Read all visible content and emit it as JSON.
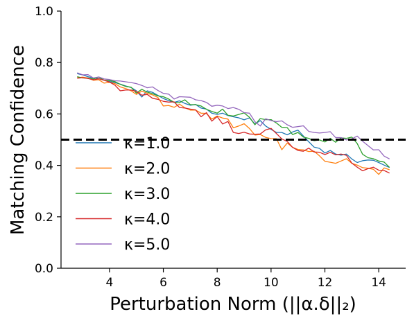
{
  "chart_data": {
    "type": "line",
    "xlabel": "Perturbation Norm (||α.δ||₂)",
    "ylabel": "Matching Confidence",
    "xlim": [
      2.2,
      15.0
    ],
    "ylim": [
      0.0,
      1.0
    ],
    "x_ticks": [
      "4",
      "6",
      "8",
      "10",
      "12",
      "14"
    ],
    "x_tick_values": [
      4,
      6,
      8,
      10,
      12,
      14
    ],
    "y_ticks": [
      "0.0",
      "0.2",
      "0.4",
      "0.6",
      "0.8",
      "1.0"
    ],
    "y_tick_values": [
      0.0,
      0.2,
      0.4,
      0.6,
      0.8,
      1.0
    ],
    "grid": false,
    "legend_position": "center-left",
    "reference_line": {
      "y": 0.5,
      "style": "dashed",
      "color": "#000000"
    },
    "x": [
      2.8,
      3.0,
      3.2,
      3.4,
      3.6,
      3.8,
      4.0,
      4.2,
      4.4,
      4.6,
      4.8,
      5.0,
      5.2,
      5.4,
      5.6,
      5.8,
      6.0,
      6.2,
      6.4,
      6.6,
      6.8,
      7.0,
      7.2,
      7.4,
      7.6,
      7.8,
      8.0,
      8.2,
      8.4,
      8.6,
      8.8,
      9.0,
      9.2,
      9.4,
      9.6,
      9.8,
      10.0,
      10.2,
      10.4,
      10.6,
      10.8,
      11.0,
      11.2,
      11.4,
      11.6,
      11.8,
      12.0,
      12.2,
      12.4,
      12.6,
      12.8,
      13.0,
      13.2,
      13.4,
      13.6,
      13.8,
      14.0,
      14.2,
      14.4
    ],
    "series": [
      {
        "name": "κ=1.0",
        "legend_label": "κ=1.0",
        "color": "#1f77b4",
        "values": [
          0.757,
          0.752,
          0.745,
          0.74,
          0.737,
          0.731,
          0.726,
          0.722,
          0.716,
          0.709,
          0.703,
          0.69,
          0.666,
          0.69,
          0.684,
          0.672,
          0.66,
          0.652,
          0.645,
          0.651,
          0.641,
          0.634,
          0.637,
          0.623,
          0.619,
          0.603,
          0.598,
          0.603,
          0.594,
          0.589,
          0.585,
          0.577,
          0.585,
          0.561,
          0.574,
          0.553,
          0.54,
          0.528,
          0.528,
          0.519,
          0.53,
          0.537,
          0.514,
          0.492,
          0.471,
          0.466,
          0.448,
          0.458,
          0.444,
          0.44,
          0.444,
          0.425,
          0.411,
          0.418,
          0.421,
          0.42,
          0.411,
          0.401,
          0.392
        ]
      },
      {
        "name": "κ=2.0",
        "legend_label": "κ=2.0",
        "color": "#ff7f0e",
        "values": [
          0.741,
          0.743,
          0.74,
          0.731,
          0.733,
          0.72,
          0.723,
          0.718,
          0.705,
          0.699,
          0.69,
          0.676,
          0.689,
          0.68,
          0.674,
          0.664,
          0.631,
          0.633,
          0.626,
          0.638,
          0.624,
          0.615,
          0.615,
          0.603,
          0.602,
          0.58,
          0.592,
          0.584,
          0.58,
          0.546,
          0.553,
          0.562,
          0.543,
          0.518,
          0.52,
          0.509,
          0.504,
          0.504,
          0.461,
          0.487,
          0.47,
          0.462,
          0.46,
          0.454,
          0.455,
          0.437,
          0.416,
          0.412,
          0.408,
          0.417,
          0.426,
          0.408,
          0.401,
          0.391,
          0.389,
          0.385,
          0.365,
          0.39,
          0.383
        ]
      },
      {
        "name": "κ=3.0",
        "legend_label": "κ=3.0",
        "color": "#2ca02c",
        "values": [
          0.745,
          0.74,
          0.739,
          0.736,
          0.743,
          0.731,
          0.73,
          0.726,
          0.715,
          0.707,
          0.704,
          0.681,
          0.696,
          0.685,
          0.679,
          0.67,
          0.667,
          0.658,
          0.645,
          0.644,
          0.655,
          0.636,
          0.636,
          0.631,
          0.618,
          0.61,
          0.603,
          0.619,
          0.595,
          0.592,
          0.598,
          0.604,
          0.587,
          0.558,
          0.582,
          0.578,
          0.578,
          0.565,
          0.548,
          0.547,
          0.52,
          0.528,
          0.51,
          0.505,
          0.496,
          0.499,
          0.491,
          0.505,
          0.49,
          0.507,
          0.505,
          0.51,
          0.485,
          0.443,
          0.43,
          0.426,
          0.417,
          0.413,
          0.392
        ]
      },
      {
        "name": "κ=4.0",
        "legend_label": "κ=4.0",
        "color": "#d62728",
        "values": [
          0.739,
          0.741,
          0.738,
          0.733,
          0.737,
          0.731,
          0.724,
          0.712,
          0.69,
          0.693,
          0.693,
          0.688,
          0.673,
          0.676,
          0.661,
          0.657,
          0.649,
          0.646,
          0.647,
          0.625,
          0.623,
          0.619,
          0.616,
          0.589,
          0.605,
          0.572,
          0.59,
          0.561,
          0.571,
          0.528,
          0.524,
          0.529,
          0.522,
          0.521,
          0.522,
          0.538,
          0.544,
          0.524,
          0.503,
          0.493,
          0.47,
          0.458,
          0.455,
          0.467,
          0.452,
          0.451,
          0.442,
          0.451,
          0.441,
          0.444,
          0.439,
          0.409,
          0.393,
          0.379,
          0.387,
          0.393,
          0.381,
          0.38,
          0.37
        ]
      },
      {
        "name": "κ=5.0",
        "legend_label": "κ=5.0",
        "color": "#9467bd",
        "values": [
          0.76,
          0.752,
          0.753,
          0.74,
          0.744,
          0.736,
          0.734,
          0.729,
          0.728,
          0.725,
          0.722,
          0.718,
          0.711,
          0.702,
          0.705,
          0.691,
          0.68,
          0.677,
          0.658,
          0.667,
          0.666,
          0.665,
          0.655,
          0.652,
          0.645,
          0.63,
          0.634,
          0.631,
          0.621,
          0.625,
          0.618,
          0.605,
          0.603,
          0.57,
          0.553,
          0.581,
          0.574,
          0.57,
          0.573,
          0.558,
          0.548,
          0.551,
          0.554,
          0.532,
          0.528,
          0.526,
          0.528,
          0.531,
          0.508,
          0.508,
          0.499,
          0.503,
          0.514,
          0.494,
          0.477,
          0.46,
          0.461,
          0.436,
          0.425
        ]
      }
    ]
  }
}
